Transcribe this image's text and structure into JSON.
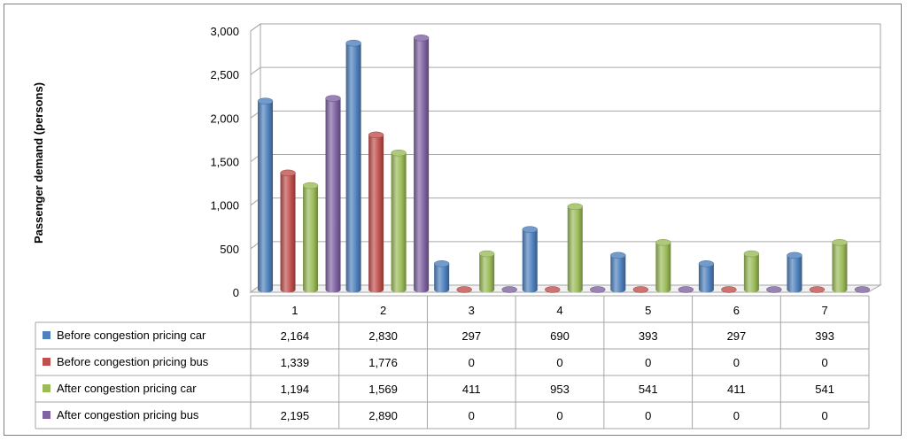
{
  "chart_data": {
    "type": "bar",
    "categories": [
      "1",
      "2",
      "3",
      "4",
      "5",
      "6",
      "7"
    ],
    "ylabel": "Passenger demand (persons)",
    "ylim": [
      0,
      3000
    ],
    "yticks": [
      "0",
      "500",
      "1,000",
      "1,500",
      "2,000",
      "2,500",
      "3,000"
    ],
    "grid": true,
    "legend": "data-table",
    "series": [
      {
        "name": "Before congestion pricing car",
        "color": "#4f81bd",
        "values": [
          2164,
          2830,
          297,
          690,
          393,
          297,
          393
        ],
        "labels": [
          "2,164",
          "2,830",
          "297",
          "690",
          "393",
          "297",
          "393"
        ]
      },
      {
        "name": "Before congestion pricing bus",
        "color": "#c0504d",
        "values": [
          1339,
          1776,
          0,
          0,
          0,
          0,
          0
        ],
        "labels": [
          "1,339",
          "1,776",
          "0",
          "0",
          "0",
          "0",
          "0"
        ]
      },
      {
        "name": "After congestion pricing car",
        "color": "#9bbb59",
        "values": [
          1194,
          1569,
          411,
          953,
          541,
          411,
          541
        ],
        "labels": [
          "1,194",
          "1,569",
          "411",
          "953",
          "541",
          "411",
          "541"
        ]
      },
      {
        "name": "After congestion pricing bus",
        "color": "#8064a2",
        "values": [
          2195,
          2890,
          0,
          0,
          0,
          0,
          0
        ],
        "labels": [
          "2,195",
          "2,890",
          "0",
          "0",
          "0",
          "0",
          "0"
        ]
      }
    ]
  }
}
